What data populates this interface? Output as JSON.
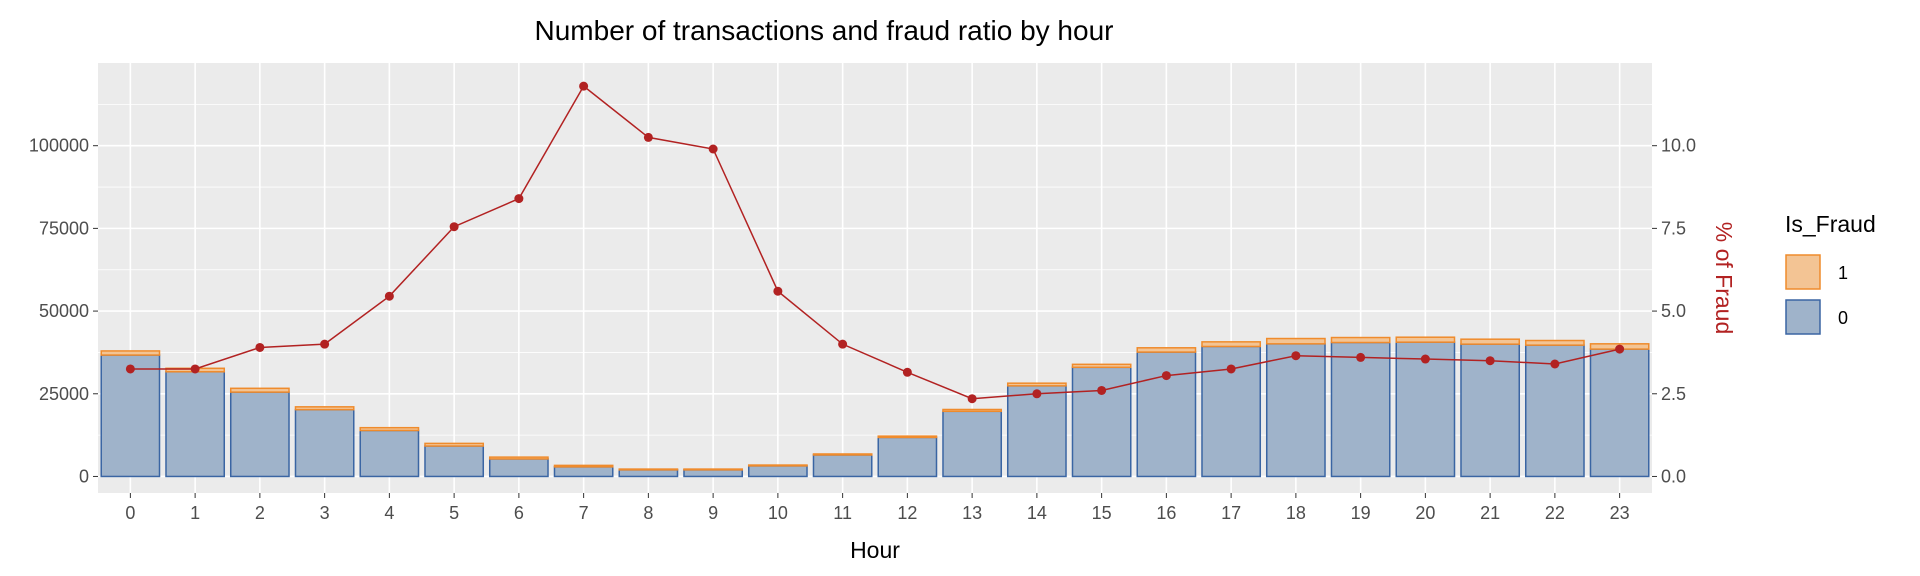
{
  "chart_data": {
    "type": "bar",
    "title": "Number of transactions and fraud ratio by hour",
    "xlabel": "Hour",
    "ylabel": "",
    "y2label": "% of Fraud",
    "categories": [
      "0",
      "1",
      "2",
      "3",
      "4",
      "5",
      "6",
      "7",
      "8",
      "9",
      "10",
      "11",
      "12",
      "13",
      "14",
      "15",
      "16",
      "17",
      "18",
      "19",
      "20",
      "21",
      "22",
      "23"
    ],
    "ylim": [
      -5000,
      125000
    ],
    "yticks": [
      0,
      25000,
      50000,
      75000,
      100000
    ],
    "y2lim": [
      -0.5,
      12.5
    ],
    "y2ticks": [
      "0.0",
      "2.5",
      "5.0",
      "7.5",
      "10.0"
    ],
    "grid": true,
    "legend_position": "right",
    "legend_title": "Is_Fraud",
    "series": [
      {
        "name": "0",
        "type": "bar",
        "stack": "count",
        "fill": "#9fb3ca",
        "stroke": "#3a65a3",
        "values": [
          36700,
          31650,
          25500,
          20200,
          13900,
          9200,
          5300,
          2900,
          2000,
          2000,
          3200,
          6500,
          11800,
          19700,
          27400,
          33000,
          37600,
          39300,
          40100,
          40500,
          40600,
          40000,
          39700,
          38500
        ]
      },
      {
        "name": "1",
        "type": "bar",
        "stack": "count",
        "fill": "#f3c494",
        "stroke": "#ef8b2c",
        "values": [
          1250,
          1050,
          1150,
          850,
          850,
          800,
          550,
          450,
          230,
          230,
          250,
          300,
          400,
          550,
          800,
          900,
          1300,
          1400,
          1600,
          1500,
          1500,
          1500,
          1400,
          1600
        ]
      },
      {
        "name": "% of Fraud",
        "type": "line",
        "axis": "right",
        "color": "#b22222",
        "values": [
          3.25,
          3.25,
          3.9,
          4.0,
          5.45,
          7.55,
          8.4,
          11.8,
          10.25,
          9.9,
          5.6,
          4.0,
          3.15,
          2.35,
          2.5,
          2.6,
          3.05,
          3.25,
          3.65,
          3.6,
          3.55,
          3.5,
          3.4,
          3.85
        ]
      }
    ]
  }
}
